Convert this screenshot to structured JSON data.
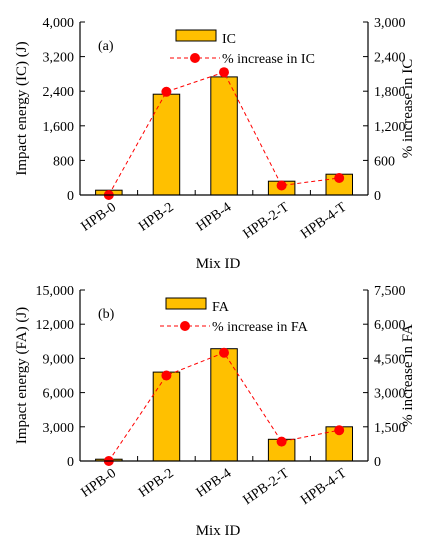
{
  "chart_data": [
    {
      "type": "bar",
      "panel_label": "(a)",
      "categories": [
        "HPB-0",
        "HPB-2",
        "HPB-4",
        "HPB-2-T",
        "HPB-4-T"
      ],
      "series": [
        {
          "name": "IC",
          "type": "bar",
          "axis": "left",
          "values": [
            110,
            2330,
            2730,
            320,
            480
          ]
        },
        {
          "name": "% increase in IC",
          "type": "line",
          "axis": "right",
          "values": [
            0,
            1790,
            2130,
            165,
            295
          ]
        }
      ],
      "xlabel": "Mix ID",
      "ylabel": "Impact energy (IC) (J)",
      "y2label": "% increase in IC",
      "ylim": [
        0,
        4000
      ],
      "y2lim": [
        0,
        3000
      ],
      "yticks": [
        0,
        800,
        1600,
        2400,
        3200,
        4000
      ],
      "yticklabels": [
        "0",
        "800",
        "1,600",
        "2,400",
        "3,200",
        "4,000"
      ],
      "y2ticks": [
        0,
        600,
        1200,
        1800,
        2400,
        3000
      ],
      "y2ticklabels": [
        "0",
        "600",
        "1,200",
        "1,800",
        "2,400",
        "3,000"
      ],
      "legend_position": "top",
      "grid": false
    },
    {
      "type": "bar",
      "panel_label": "(b)",
      "categories": [
        "HPB-0",
        "HPB-2",
        "HPB-4",
        "HPB-2-T",
        "HPB-4-T"
      ],
      "series": [
        {
          "name": "FA",
          "type": "bar",
          "axis": "left",
          "values": [
            160,
            7800,
            9850,
            1900,
            3000
          ]
        },
        {
          "name": "% increase in FA",
          "type": "line",
          "axis": "right",
          "values": [
            0,
            3750,
            4750,
            850,
            1350
          ]
        }
      ],
      "xlabel": "Mix ID",
      "ylabel": "Impact energy (FA) (J)",
      "y2label": "% increase in FA",
      "ylim": [
        0,
        15000
      ],
      "y2lim": [
        0,
        7500
      ],
      "yticks": [
        0,
        3000,
        6000,
        9000,
        12000,
        15000
      ],
      "yticklabels": [
        "0",
        "3,000",
        "6,000",
        "9,000",
        "12,000",
        "15,000"
      ],
      "y2ticks": [
        0,
        1500,
        3000,
        4500,
        6000,
        7500
      ],
      "y2ticklabels": [
        "0",
        "1,500",
        "3,000",
        "4,500",
        "6,000",
        "7,500"
      ],
      "legend_position": "top",
      "grid": false
    }
  ],
  "colors": {
    "bar_fill": "#FFC000",
    "bar_edge": "#000000",
    "line": "#FF0000",
    "marker": "#FF0000"
  }
}
